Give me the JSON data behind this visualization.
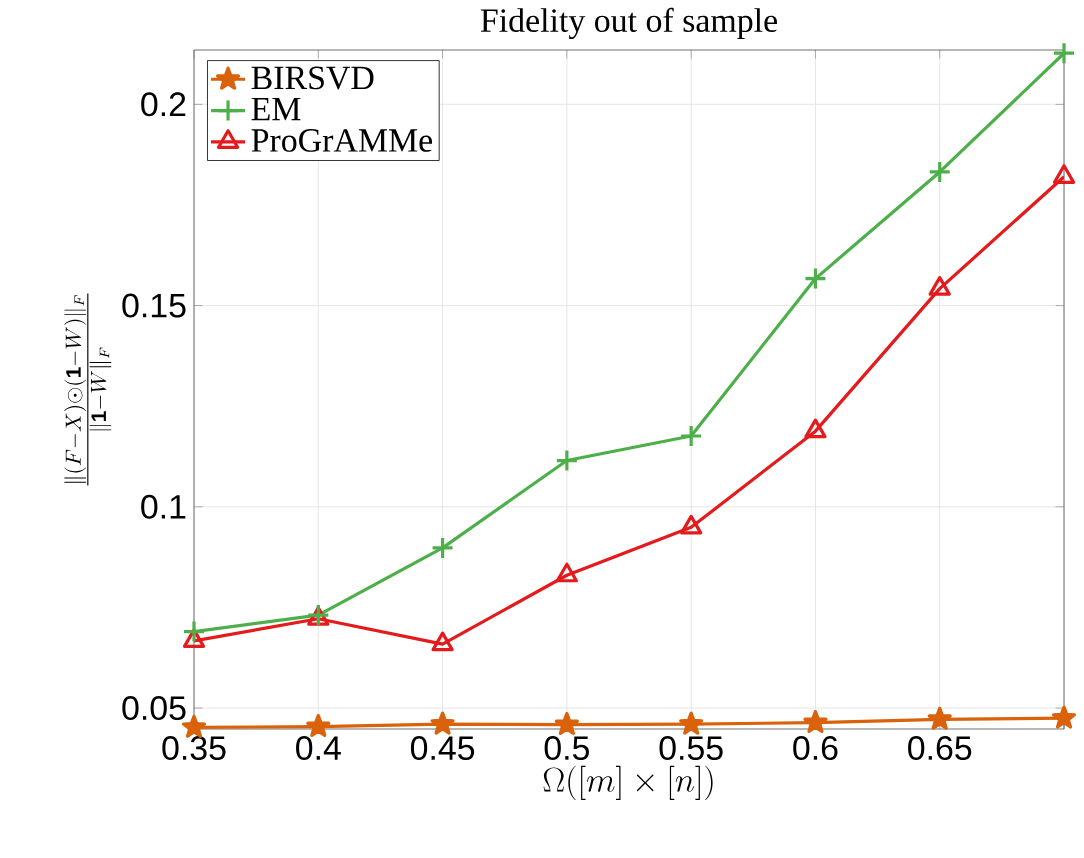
{
  "chart_data": {
    "type": "line",
    "title": "Fidelity out of sample",
    "xlabel": "\\Omega([m]\\times[n])",
    "ylabel": "\\frac{\\|(F-X)\\odot(\\mathbf{1}-W)\\|_F}{\\|\\mathbf{1}-W\\|_F}",
    "x": [
      0.35,
      0.4,
      0.45,
      0.5,
      0.55,
      0.6,
      0.65,
      0.7
    ],
    "series": [
      {
        "name": "BIRSVD",
        "color": "#d9620a",
        "marker": "star",
        "values": [
          0.0452,
          0.0454,
          0.046,
          0.0459,
          0.046,
          0.0464,
          0.0472,
          0.0475
        ]
      },
      {
        "name": "EM",
        "color": "#4daf4a",
        "marker": "cross",
        "values": [
          0.069,
          0.0731,
          0.0898,
          0.1115,
          0.1176,
          0.1567,
          0.1832,
          0.2127
        ]
      },
      {
        "name": "ProGrAMMe",
        "color": "#e41a1c",
        "marker": "triangle",
        "values": [
          0.0667,
          0.0722,
          0.0659,
          0.083,
          0.0949,
          0.1188,
          0.1542,
          0.182
        ]
      }
    ],
    "xlim": [
      0.35,
      0.7
    ],
    "xticks": [
      0.35,
      0.4,
      0.45,
      0.5,
      0.55,
      0.6,
      0.65,
      {
        "value": 0.7,
        "label": null
      }
    ],
    "ylim": [
      0.0448,
      0.2135
    ],
    "yticks": [
      0.05,
      0.1,
      0.15,
      0.2
    ],
    "grid": true,
    "legend": "top left",
    "line_style": "solid"
  }
}
